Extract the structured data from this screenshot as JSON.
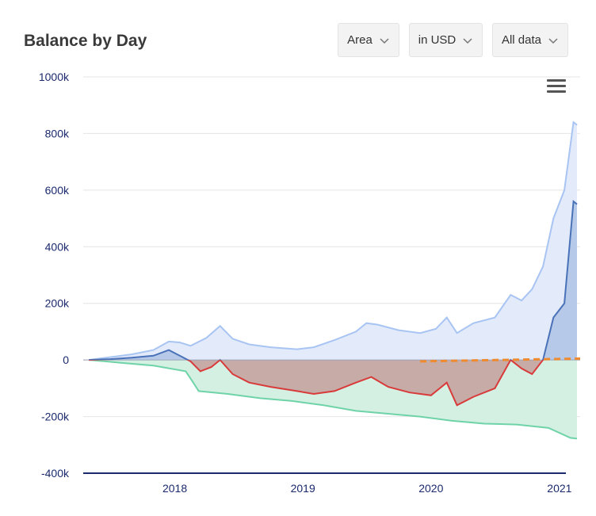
{
  "header": {
    "title": "Balance by Day"
  },
  "controls": [
    {
      "label": "Area",
      "icon": "chevron-down-icon"
    },
    {
      "label": "in USD",
      "icon": "chevron-down-icon"
    },
    {
      "label": "All data",
      "icon": "chevron-down-icon"
    }
  ],
  "menu_icon": "hamburger-menu-icon",
  "chart_data": {
    "type": "area",
    "title": "Balance by Day",
    "xlabel": "",
    "ylabel": "",
    "ylim": [
      -400000,
      1000000
    ],
    "xlim": [
      "2017-04-15",
      "2021-03-01"
    ],
    "grid": true,
    "legend": "none",
    "y_ticks": [
      {
        "v": 1000000,
        "label": "1000k"
      },
      {
        "v": 800000,
        "label": "800k"
      },
      {
        "v": 600000,
        "label": "600k"
      },
      {
        "v": 400000,
        "label": "400k"
      },
      {
        "v": 200000,
        "label": "200k"
      },
      {
        "v": 0,
        "label": "0"
      },
      {
        "v": -200000,
        "label": "-200k"
      },
      {
        "v": -400000,
        "label": "-400k"
      }
    ],
    "x_ticks": [
      {
        "date": "2018-01-01",
        "label": "2018"
      },
      {
        "date": "2019-01-01",
        "label": "2019"
      },
      {
        "date": "2020-01-01",
        "label": "2020"
      },
      {
        "date": "2021-01-01",
        "label": "2021"
      }
    ],
    "colors": {
      "value": "#a8c4f2",
      "value_fill": "#e3ebfb",
      "profit": "#4a72b8",
      "profit_fill": "#b7c9e8",
      "loss": "#d93a3a",
      "loss_fill": "#c6aba7",
      "invested": "#6fd3a8",
      "invested_fill": "#d4f0e2",
      "projection": "#ef8a2f",
      "axis": "#1a2a6c",
      "grid": "#e4e4e4"
    },
    "series": [
      {
        "role": "value",
        "values": [
          [
            "2017-05-01",
            0
          ],
          [
            "2017-07-01",
            10000
          ],
          [
            "2017-09-01",
            20000
          ],
          [
            "2017-11-01",
            35000
          ],
          [
            "2017-12-15",
            65000
          ],
          [
            "2018-01-15",
            62000
          ],
          [
            "2018-02-15",
            50000
          ],
          [
            "2018-04-01",
            78000
          ],
          [
            "2018-05-10",
            120000
          ],
          [
            "2018-06-15",
            75000
          ],
          [
            "2018-08-01",
            55000
          ],
          [
            "2018-10-01",
            45000
          ],
          [
            "2018-12-15",
            38000
          ],
          [
            "2019-02-01",
            45000
          ],
          [
            "2019-04-01",
            70000
          ],
          [
            "2019-06-01",
            100000
          ],
          [
            "2019-07-01",
            130000
          ],
          [
            "2019-08-01",
            125000
          ],
          [
            "2019-10-01",
            105000
          ],
          [
            "2019-12-01",
            95000
          ],
          [
            "2020-01-15",
            110000
          ],
          [
            "2020-02-15",
            150000
          ],
          [
            "2020-03-15",
            95000
          ],
          [
            "2020-05-01",
            130000
          ],
          [
            "2020-07-01",
            150000
          ],
          [
            "2020-08-15",
            230000
          ],
          [
            "2020-09-15",
            210000
          ],
          [
            "2020-10-15",
            250000
          ],
          [
            "2020-11-15",
            330000
          ],
          [
            "2020-12-15",
            500000
          ],
          [
            "2021-01-15",
            600000
          ],
          [
            "2021-02-10",
            840000
          ],
          [
            "2021-02-20",
            830000
          ]
        ]
      },
      {
        "role": "profit_loss",
        "values": [
          [
            "2017-05-01",
            0
          ],
          [
            "2017-07-01",
            3000
          ],
          [
            "2017-09-01",
            8000
          ],
          [
            "2017-11-01",
            15000
          ],
          [
            "2017-12-15",
            35000
          ],
          [
            "2018-01-15",
            15000
          ],
          [
            "2018-02-15",
            -5000
          ],
          [
            "2018-03-15",
            -40000
          ],
          [
            "2018-04-15",
            -25000
          ],
          [
            "2018-05-10",
            0
          ],
          [
            "2018-06-15",
            -50000
          ],
          [
            "2018-08-01",
            -80000
          ],
          [
            "2018-10-01",
            -95000
          ],
          [
            "2018-12-15",
            -110000
          ],
          [
            "2019-02-01",
            -120000
          ],
          [
            "2019-04-01",
            -110000
          ],
          [
            "2019-06-01",
            -80000
          ],
          [
            "2019-07-15",
            -60000
          ],
          [
            "2019-09-01",
            -95000
          ],
          [
            "2019-11-01",
            -115000
          ],
          [
            "2020-01-01",
            -125000
          ],
          [
            "2020-02-15",
            -80000
          ],
          [
            "2020-03-15",
            -160000
          ],
          [
            "2020-05-01",
            -130000
          ],
          [
            "2020-07-01",
            -100000
          ],
          [
            "2020-08-15",
            0
          ],
          [
            "2020-09-15",
            -30000
          ],
          [
            "2020-10-15",
            -50000
          ],
          [
            "2020-11-15",
            0
          ],
          [
            "2020-12-15",
            150000
          ],
          [
            "2021-01-15",
            200000
          ],
          [
            "2021-02-10",
            560000
          ],
          [
            "2021-02-20",
            550000
          ]
        ]
      },
      {
        "role": "invested",
        "values": [
          [
            "2017-05-01",
            0
          ],
          [
            "2017-08-01",
            -10000
          ],
          [
            "2017-11-01",
            -20000
          ],
          [
            "2018-02-01",
            -40000
          ],
          [
            "2018-02-20",
            -75000
          ],
          [
            "2018-03-10",
            -110000
          ],
          [
            "2018-06-01",
            -120000
          ],
          [
            "2018-09-01",
            -135000
          ],
          [
            "2018-12-01",
            -145000
          ],
          [
            "2019-03-01",
            -160000
          ],
          [
            "2019-06-01",
            -180000
          ],
          [
            "2019-09-01",
            -190000
          ],
          [
            "2019-12-01",
            -200000
          ],
          [
            "2020-03-01",
            -215000
          ],
          [
            "2020-06-01",
            -225000
          ],
          [
            "2020-09-01",
            -228000
          ],
          [
            "2020-12-01",
            -240000
          ],
          [
            "2021-02-01",
            -275000
          ],
          [
            "2021-02-20",
            -278000
          ]
        ]
      },
      {
        "role": "projection",
        "values": [
          [
            "2019-12-01",
            -5000
          ],
          [
            "2021-03-01",
            5000
          ]
        ]
      }
    ]
  }
}
